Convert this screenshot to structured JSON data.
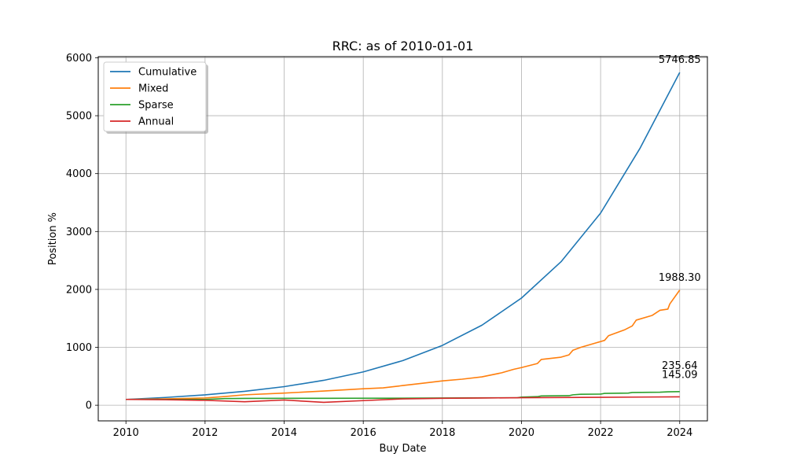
{
  "chart_data": {
    "type": "line",
    "title": "RRC: as of 2010-01-01",
    "xlabel": "Buy Date",
    "ylabel": "Position %",
    "xlim": [
      2009.3,
      2024.7
    ],
    "ylim": [
      -270,
      6020
    ],
    "xticks": [
      2010,
      2012,
      2014,
      2016,
      2018,
      2020,
      2022,
      2024
    ],
    "yticks": [
      0,
      1000,
      2000,
      3000,
      4000,
      5000,
      6000
    ],
    "grid": true,
    "legend_position": "top-left",
    "series": [
      {
        "name": "Cumulative",
        "color": "#1f77b4",
        "end_label": "5746.85",
        "points": [
          [
            2010.0,
            100
          ],
          [
            2011.0,
            134
          ],
          [
            2012.0,
            179
          ],
          [
            2013.0,
            240
          ],
          [
            2014.0,
            321
          ],
          [
            2015.0,
            430
          ],
          [
            2016.0,
            576
          ],
          [
            2017.0,
            771
          ],
          [
            2018.0,
            1033
          ],
          [
            2019.0,
            1382
          ],
          [
            2020.0,
            1851
          ],
          [
            2021.0,
            2478
          ],
          [
            2022.0,
            3318
          ],
          [
            2023.0,
            4442
          ],
          [
            2024.0,
            5746.85
          ]
        ]
      },
      {
        "name": "Mixed",
        "color": "#ff7f0e",
        "end_label": "1988.30",
        "points": [
          [
            2010.0,
            100
          ],
          [
            2011.0,
            110
          ],
          [
            2012.0,
            125
          ],
          [
            2012.5,
            150
          ],
          [
            2013.0,
            180
          ],
          [
            2014.0,
            210
          ],
          [
            2015.0,
            245
          ],
          [
            2016.0,
            285
          ],
          [
            2016.5,
            300
          ],
          [
            2017.0,
            340
          ],
          [
            2017.5,
            380
          ],
          [
            2018.0,
            420
          ],
          [
            2018.5,
            450
          ],
          [
            2019.0,
            490
          ],
          [
            2019.5,
            560
          ],
          [
            2019.8,
            620
          ],
          [
            2020.0,
            650
          ],
          [
            2020.4,
            720
          ],
          [
            2020.5,
            790
          ],
          [
            2021.0,
            830
          ],
          [
            2021.2,
            870
          ],
          [
            2021.3,
            950
          ],
          [
            2021.5,
            1000
          ],
          [
            2021.9,
            1080
          ],
          [
            2022.1,
            1120
          ],
          [
            2022.2,
            1200
          ],
          [
            2022.6,
            1300
          ],
          [
            2022.8,
            1370
          ],
          [
            2022.9,
            1470
          ],
          [
            2023.3,
            1550
          ],
          [
            2023.5,
            1640
          ],
          [
            2023.7,
            1660
          ],
          [
            2023.75,
            1750
          ],
          [
            2024.0,
            1988.3
          ]
        ]
      },
      {
        "name": "Sparse",
        "color": "#2ca02c",
        "end_label": "235.64",
        "points": [
          [
            2010.0,
            100
          ],
          [
            2012.0,
            100
          ],
          [
            2012.5,
            115
          ],
          [
            2013.0,
            118
          ],
          [
            2015.0,
            120
          ],
          [
            2017.0,
            122
          ],
          [
            2018.0,
            125
          ],
          [
            2019.9,
            130
          ],
          [
            2020.0,
            140
          ],
          [
            2020.4,
            148
          ],
          [
            2020.5,
            160
          ],
          [
            2021.2,
            165
          ],
          [
            2021.3,
            180
          ],
          [
            2021.5,
            190
          ],
          [
            2022.0,
            192
          ],
          [
            2022.1,
            205
          ],
          [
            2022.7,
            210
          ],
          [
            2022.8,
            220
          ],
          [
            2023.5,
            225
          ],
          [
            2023.7,
            232
          ],
          [
            2024.0,
            235.64
          ]
        ]
      },
      {
        "name": "Annual",
        "color": "#d62728",
        "end_label": "145.09",
        "points": [
          [
            2010.0,
            100
          ],
          [
            2011.0,
            95
          ],
          [
            2012.0,
            85
          ],
          [
            2013.0,
            60
          ],
          [
            2014.0,
            90
          ],
          [
            2015.0,
            50
          ],
          [
            2016.0,
            80
          ],
          [
            2017.0,
            110
          ],
          [
            2018.0,
            120
          ],
          [
            2019.0,
            125
          ],
          [
            2020.0,
            130
          ],
          [
            2021.0,
            133
          ],
          [
            2022.0,
            137
          ],
          [
            2023.0,
            141
          ],
          [
            2024.0,
            145.09
          ]
        ]
      }
    ]
  }
}
